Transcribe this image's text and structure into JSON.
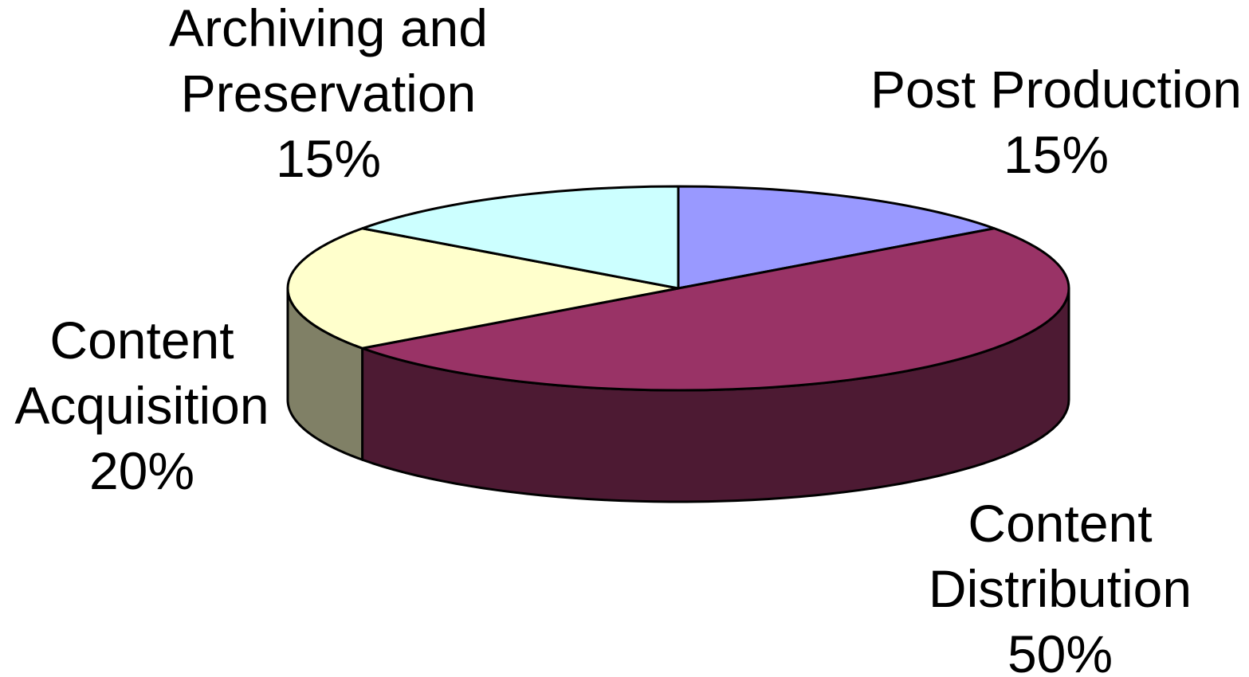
{
  "chart_data": {
    "type": "pie",
    "style": "3d",
    "title": "",
    "start_angle_deg": 90,
    "direction": "clockwise",
    "slices": [
      {
        "lines": [
          "Post Production"
        ],
        "value": 15,
        "value_label": "15%",
        "top_color": "#9999ff",
        "side_color": "#5a5a99"
      },
      {
        "lines": [
          "Content",
          "Distribution"
        ],
        "value": 50,
        "value_label": "50%",
        "top_color": "#993366",
        "side_color": "#4d1a33"
      },
      {
        "lines": [
          "Content",
          "Acquisition"
        ],
        "value": 20,
        "value_label": "20%",
        "top_color": "#ffffcc",
        "side_color": "#808066"
      },
      {
        "lines": [
          "Archiving and",
          "Preservation"
        ],
        "value": 15,
        "value_label": "15%",
        "top_color": "#ccffff",
        "side_color": "#668080"
      }
    ]
  }
}
